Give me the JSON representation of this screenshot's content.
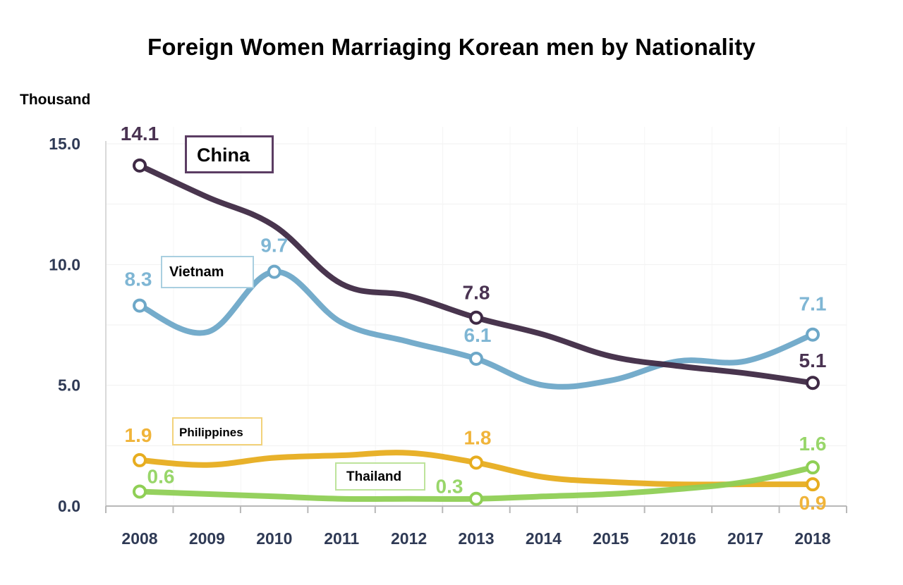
{
  "chart_data": {
    "type": "line",
    "title": "Foreign Women Marriaging Korean men by Nationality",
    "ylabel": "Thousand",
    "xlabel": "",
    "ylim": [
      0,
      15
    ],
    "yticks": [
      "0.0",
      "5.0",
      "10.0",
      "15.0"
    ],
    "categories": [
      "2008",
      "2009",
      "2010",
      "2011",
      "2012",
      "2013",
      "2014",
      "2015",
      "2016",
      "2017",
      "2018"
    ],
    "series": [
      {
        "name": "China",
        "color": "#3f2a45",
        "values": [
          14.1,
          12.8,
          11.6,
          9.2,
          8.7,
          7.8,
          7.1,
          6.2,
          5.8,
          5.5,
          5.1
        ],
        "labels": [
          {
            "i": 0,
            "text": "14.1"
          },
          {
            "i": 5,
            "text": "7.8"
          },
          {
            "i": 10,
            "text": "5.1"
          }
        ]
      },
      {
        "name": "Vietnam",
        "color": "#6ea8c8",
        "values": [
          8.3,
          7.2,
          9.7,
          7.6,
          6.8,
          6.1,
          5.0,
          5.2,
          6.0,
          6.0,
          7.1
        ],
        "labels": [
          {
            "i": 0,
            "text": "8.3"
          },
          {
            "i": 2,
            "text": "9.7"
          },
          {
            "i": 5,
            "text": "6.1"
          },
          {
            "i": 10,
            "text": "7.1"
          }
        ]
      },
      {
        "name": "Philippines",
        "color": "#e7ad1f",
        "values": [
          1.9,
          1.7,
          2.0,
          2.1,
          2.2,
          1.8,
          1.2,
          1.0,
          0.9,
          0.9,
          0.9
        ],
        "labels": [
          {
            "i": 0,
            "text": "1.9"
          },
          {
            "i": 5,
            "text": "1.8"
          },
          {
            "i": 10,
            "text": "0.9"
          }
        ]
      },
      {
        "name": "Thailand",
        "color": "#8fcf55",
        "values": [
          0.6,
          0.5,
          0.4,
          0.3,
          0.3,
          0.3,
          0.4,
          0.5,
          0.7,
          1.0,
          1.6
        ],
        "labels": [
          {
            "i": 0,
            "text": "0.6"
          },
          {
            "i": 5,
            "text": "0.3"
          },
          {
            "i": 10,
            "text": "1.6"
          }
        ]
      }
    ]
  }
}
